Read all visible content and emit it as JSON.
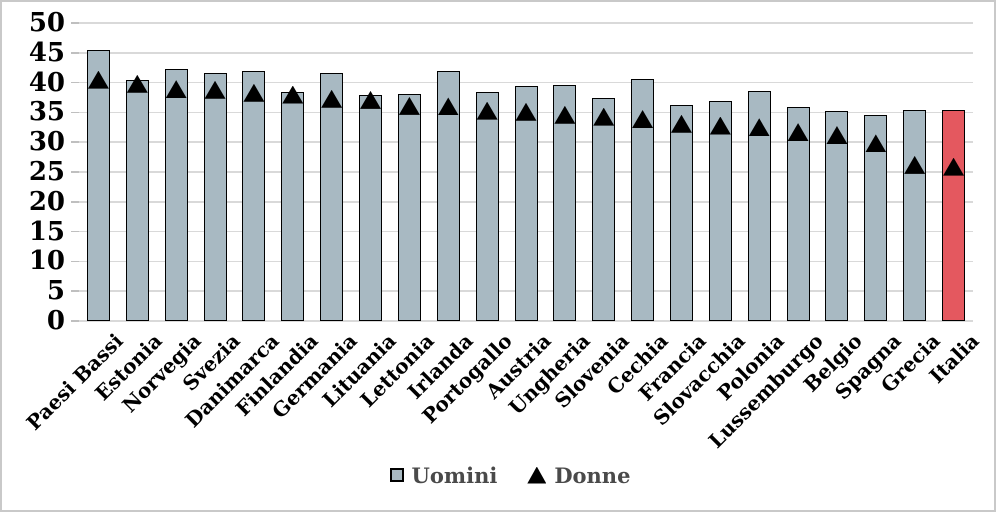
{
  "chart_data": {
    "type": "bar",
    "title": "",
    "xlabel": "",
    "ylabel": "",
    "categories": [
      "Paesi Bassi",
      "Estonia",
      "Norvegia",
      "Svezia",
      "Danimarca",
      "Finlandia",
      "Germania",
      "Lituania",
      "Lettonia",
      "Irlanda",
      "Portogallo",
      "Austria",
      "Ungheria",
      "Slovenia",
      "Cechia",
      "Francia",
      "Slovacchia",
      "Polonia",
      "Lussemburgo",
      "Belgio",
      "Spagna",
      "Grecia",
      "Italia"
    ],
    "series": [
      {
        "name": "Uomini",
        "type": "bar",
        "values": [
          45.5,
          40.4,
          42.2,
          41.6,
          42.0,
          38.5,
          41.6,
          37.9,
          38.1,
          42.0,
          38.5,
          39.4,
          39.6,
          37.5,
          40.6,
          36.3,
          36.9,
          38.6,
          35.9,
          35.3,
          34.6,
          35.4,
          35.4
        ]
      },
      {
        "name": "Donne",
        "type": "scatter",
        "marker": "triangle",
        "values": [
          40.5,
          39.8,
          38.9,
          38.8,
          38.3,
          38.0,
          37.3,
          37.1,
          36.1,
          36.0,
          35.3,
          35.1,
          34.6,
          34.3,
          33.9,
          33.1,
          32.8,
          32.5,
          31.7,
          31.2,
          29.8,
          26.2,
          25.9
        ]
      }
    ],
    "highlight_category": "Italia",
    "ylim": [
      0,
      50
    ],
    "y_ticks": [
      0,
      5,
      10,
      15,
      20,
      25,
      30,
      35,
      40,
      45,
      50
    ],
    "grid": true,
    "legend_position": "bottom",
    "colors": {
      "bar_fill": "#A8B9C2",
      "bar_highlight": "#E4585F",
      "bar_border": "#000000",
      "marker": "#000000",
      "gridline": "#D9D9D9",
      "tick": "#BFBFBF",
      "axis_text": "#000000",
      "legend_text": "#4A4A4A",
      "frame_border": "#C9C9C9"
    }
  }
}
